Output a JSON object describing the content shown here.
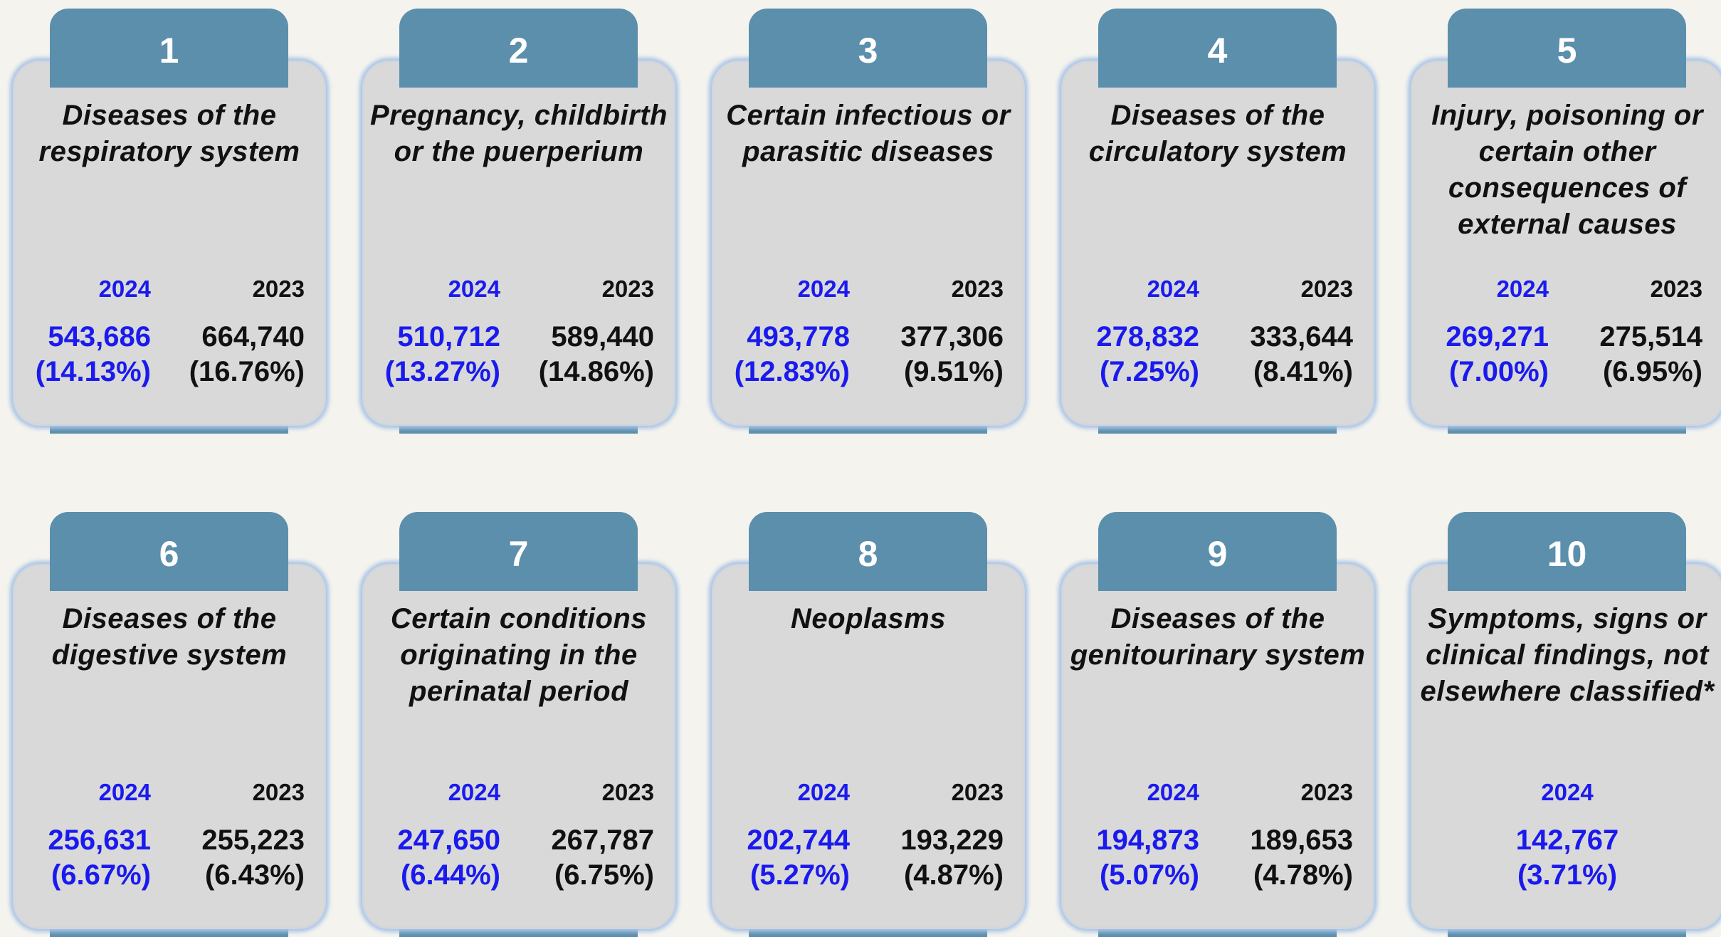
{
  "cards": [
    {
      "rank": "1",
      "title": "Diseases of the respiratory system",
      "years": [
        {
          "year": "2024",
          "value": "543,686",
          "share": "(14.13%)"
        },
        {
          "year": "2023",
          "value": "664,740",
          "share": "(16.76%)"
        }
      ]
    },
    {
      "rank": "2",
      "title": "Pregnancy, childbirth or the puerperium",
      "years": [
        {
          "year": "2024",
          "value": "510,712",
          "share": "(13.27%)"
        },
        {
          "year": "2023",
          "value": "589,440",
          "share": "(14.86%)"
        }
      ]
    },
    {
      "rank": "3",
      "title": "Certain infectious or parasitic diseases",
      "years": [
        {
          "year": "2024",
          "value": "493,778",
          "share": "(12.83%)"
        },
        {
          "year": "2023",
          "value": "377,306",
          "share": "(9.51%)"
        }
      ]
    },
    {
      "rank": "4",
      "title": "Diseases of the circulatory system",
      "years": [
        {
          "year": "2024",
          "value": "278,832",
          "share": "(7.25%)"
        },
        {
          "year": "2023",
          "value": "333,644",
          "share": "(8.41%)"
        }
      ]
    },
    {
      "rank": "5",
      "title": "Injury, poisoning or certain other consequences of external causes",
      "years": [
        {
          "year": "2024",
          "value": "269,271",
          "share": "(7.00%)"
        },
        {
          "year": "2023",
          "value": "275,514",
          "share": "(6.95%)"
        }
      ]
    },
    {
      "rank": "6",
      "title": "Diseases of the digestive system",
      "years": [
        {
          "year": "2024",
          "value": "256,631",
          "share": "(6.67%)"
        },
        {
          "year": "2023",
          "value": "255,223",
          "share": "(6.43%)"
        }
      ]
    },
    {
      "rank": "7",
      "title": "Certain conditions originating in the perinatal period",
      "years": [
        {
          "year": "2024",
          "value": "247,650",
          "share": "(6.44%)"
        },
        {
          "year": "2023",
          "value": "267,787",
          "share": "(6.75%)"
        }
      ]
    },
    {
      "rank": "8",
      "title": "Neoplasms",
      "years": [
        {
          "year": "2024",
          "value": "202,744",
          "share": "(5.27%)"
        },
        {
          "year": "2023",
          "value": "193,229",
          "share": "(4.87%)"
        }
      ]
    },
    {
      "rank": "9",
      "title": "Diseases of the genitourinary system",
      "years": [
        {
          "year": "2024",
          "value": "194,873",
          "share": "(5.07%)"
        },
        {
          "year": "2023",
          "value": "189,653",
          "share": "(4.78%)"
        }
      ]
    },
    {
      "rank": "10",
      "title": "Symptoms, signs or clinical findings, not elsewhere classified*",
      "years": [
        {
          "year": "2024",
          "value": "142,767",
          "share": "(3.71%)"
        }
      ]
    }
  ]
}
